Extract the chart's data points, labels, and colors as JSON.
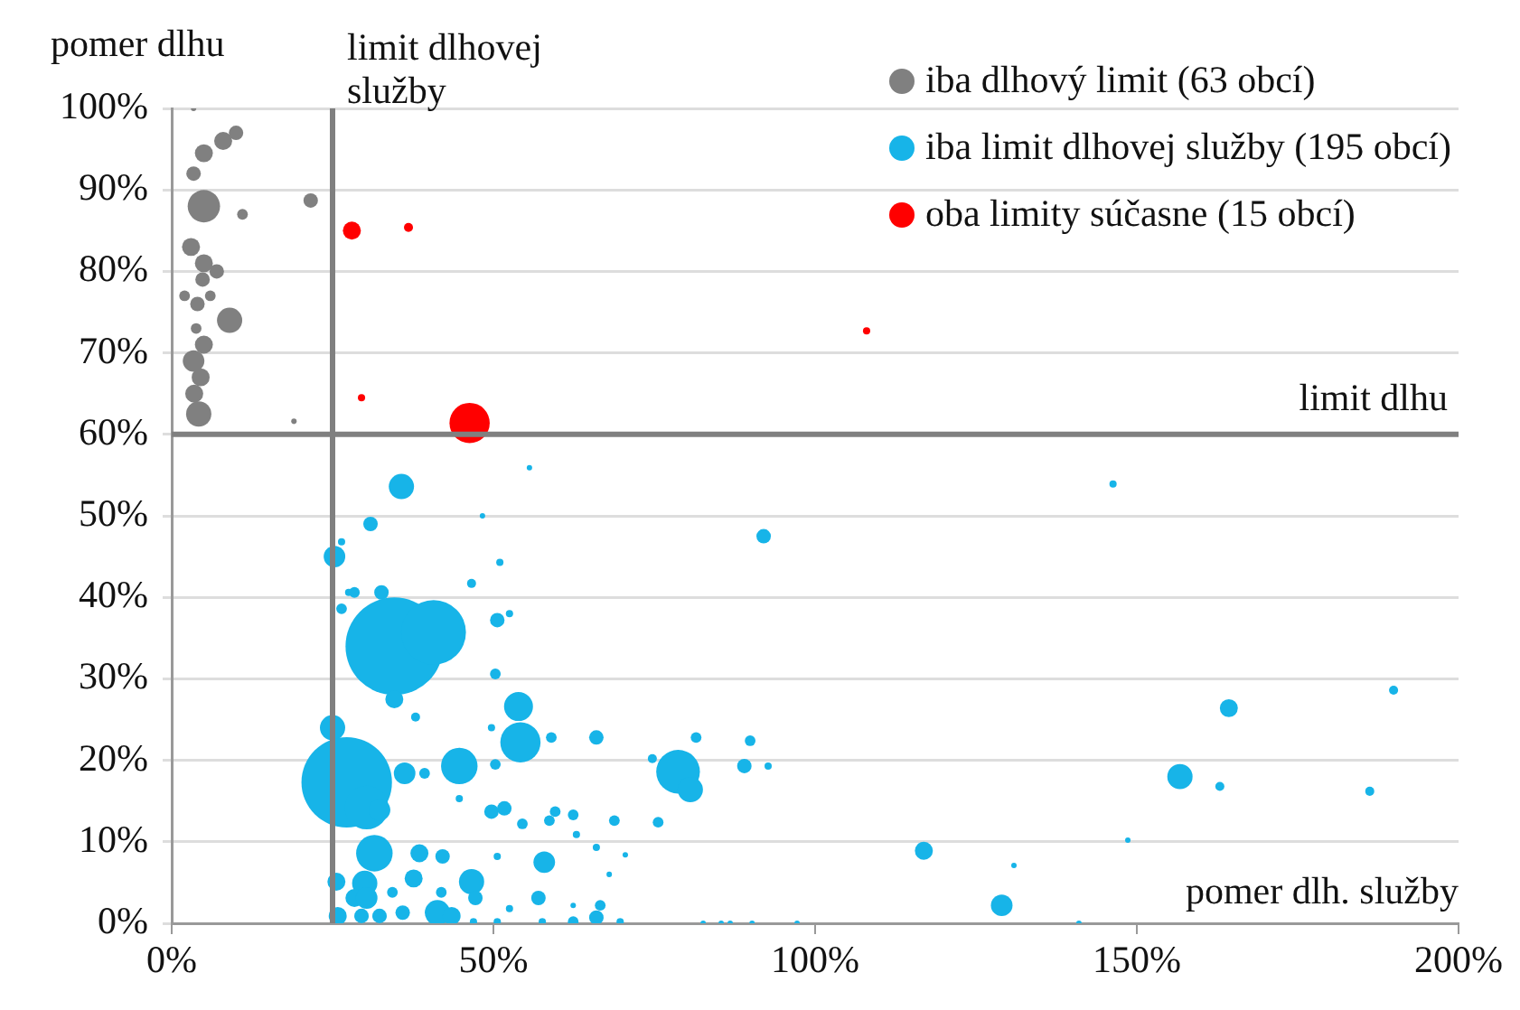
{
  "chart_data": {
    "type": "bubble",
    "xlabel": "pomer dlh. služby",
    "ylabel": "pomer dlhu",
    "xlim": [
      0,
      200
    ],
    "xticks": [
      {
        "value": 0,
        "label": "0%"
      },
      {
        "value": 50,
        "label": "50%"
      },
      {
        "value": 100,
        "label": "100%"
      },
      {
        "value": 150,
        "label": "150%"
      },
      {
        "value": 200,
        "label": "200%"
      }
    ],
    "ylim": [
      0,
      100
    ],
    "yticks": [
      {
        "value": 0,
        "label": "0%"
      },
      {
        "value": 10,
        "label": "10%"
      },
      {
        "value": 20,
        "label": "20%"
      },
      {
        "value": 30,
        "label": "30%"
      },
      {
        "value": 40,
        "label": "40%"
      },
      {
        "value": 50,
        "label": "50%"
      },
      {
        "value": 60,
        "label": "60%"
      },
      {
        "value": 70,
        "label": "70%"
      },
      {
        "value": 80,
        "label": "80%"
      },
      {
        "value": 90,
        "label": "90%"
      },
      {
        "value": 100,
        "label": "100%"
      }
    ],
    "grid": "y",
    "legend": "top right",
    "marker": "circle",
    "ref_lines": [
      {
        "axis": "x",
        "value": 25,
        "label": "limit dlhovej služby",
        "color": "#808080"
      },
      {
        "axis": "y",
        "value": 60,
        "label": "limit dlhu",
        "color": "#808080"
      }
    ],
    "series": [
      {
        "name": "iba dlhový limit (63 obcí)",
        "color": "#808080",
        "x": [
          4.2,
          3.4,
          5,
          9,
          4,
          2,
          6,
          5,
          7,
          3,
          5,
          11,
          21.6,
          5,
          8,
          10,
          3.4,
          3.4,
          19,
          3.5,
          4.5,
          3.8,
          4.8
        ],
        "values": [
          62.5,
          69,
          71,
          74,
          76,
          77,
          77,
          81,
          80,
          83,
          88,
          87,
          88.7,
          94.5,
          96,
          97,
          92,
          100,
          61.6,
          65,
          67,
          73,
          79
        ],
        "sizes": [
          0.067,
          0.049,
          0.034,
          0.067,
          0.022,
          0.012,
          0.012,
          0.034,
          0.022,
          0.034,
          0.11,
          0.012,
          0.022,
          0.034,
          0.034,
          0.022,
          0.022,
          0.0031,
          0.0031,
          0.034,
          0.034,
          0.012,
          0.022
        ]
      },
      {
        "name": "iba limit dlhovej služby (195 obcí)",
        "color": "#17b4e8",
        "x": [
          35.7,
          30.9,
          25.3,
          26.4,
          28.4,
          27.5,
          32.6,
          26.4,
          34.6,
          40.7,
          34.6,
          50.6,
          52.5,
          51,
          46.6,
          48.3,
          55.6,
          50.3,
          53.9,
          54.2,
          49.7,
          59,
          25,
          27.2,
          30.3,
          32.3,
          36.2,
          39.3,
          44.7,
          37.9,
          50.3,
          44.7,
          49.7,
          51.7,
          54.5,
          58.7,
          31.5,
          38.5,
          42.1,
          50.6,
          57.9,
          25.6,
          30,
          28.4,
          30.3,
          37.6,
          34.3,
          46.6,
          47.2,
          41.9,
          57,
          52.5,
          25.8,
          29.5,
          32.3,
          35.9,
          41.3,
          43.5,
          46.9,
          50.6,
          57.6,
          92,
          66,
          78.7,
          80.6,
          74.7,
          81.5,
          89.9,
          89,
          92.7,
          59.6,
          62.4,
          68.8,
          75.6,
          62.9,
          66,
          70.5,
          68,
          66.6,
          62.4,
          62.4,
          66,
          69.7,
          82.6,
          85.4,
          86.8,
          90.2,
          97.2,
          116.9,
          129,
          146.3,
          164.3,
          189.9,
          156.7,
          162.9,
          186.2,
          148.6,
          130.9,
          141
        ],
        "values": [
          53.6,
          49,
          45,
          46.8,
          40.6,
          40.6,
          40.6,
          38.6,
          34,
          35.7,
          27.5,
          37.2,
          38,
          44.3,
          41.7,
          50,
          55.9,
          30.6,
          26.6,
          22.2,
          24,
          22.8,
          24,
          17.3,
          14.2,
          13.9,
          18.4,
          18.4,
          19.3,
          25.3,
          19.5,
          15.3,
          13.7,
          14.1,
          12.2,
          12.6,
          8.6,
          8.6,
          8.2,
          8.2,
          7.5,
          5.1,
          4.9,
          3.1,
          3.1,
          5.5,
          3.8,
          5.1,
          3.1,
          3.8,
          3.1,
          1.8,
          0.9,
          0.9,
          0.9,
          1.3,
          1.3,
          0.9,
          0.2,
          0.2,
          0.2,
          47.5,
          22.8,
          18.6,
          16.4,
          20.2,
          22.8,
          22.4,
          19.3,
          19.3,
          13.7,
          13.3,
          12.6,
          12.4,
          10.9,
          9.3,
          8.4,
          6,
          2.2,
          2.2,
          0.2,
          0.7,
          0.2,
          0,
          0,
          0,
          0,
          0,
          8.9,
          2.2,
          53.9,
          26.4,
          28.6,
          18,
          16.8,
          16.2,
          10.2,
          7.1,
          0
        ],
        "sizes": [
          0.067,
          0.022,
          0.049,
          0.0055,
          0.012,
          0.0055,
          0.022,
          0.012,
          1,
          0.44,
          0.034,
          0.022,
          0.0055,
          0.0055,
          0.0086,
          0.0031,
          0.0031,
          0.012,
          0.088,
          0.17,
          0.0055,
          0.012,
          0.067,
          0.86,
          0.2,
          0.049,
          0.049,
          0.012,
          0.14,
          0.0086,
          0.012,
          0.0055,
          0.022,
          0.022,
          0.012,
          0.012,
          0.14,
          0.034,
          0.022,
          0.0055,
          0.049,
          0.034,
          0.067,
          0.034,
          0.049,
          0.034,
          0.012,
          0.067,
          0.022,
          0.012,
          0.022,
          0.0055,
          0.034,
          0.022,
          0.022,
          0.022,
          0.067,
          0.034,
          0.0055,
          0.0055,
          0.0055,
          0.022,
          0.022,
          0.2,
          0.067,
          0.0086,
          0.012,
          0.012,
          0.022,
          0.0055,
          0.012,
          0.012,
          0.012,
          0.012,
          0.0055,
          0.0055,
          0.0031,
          0.0031,
          0.012,
          0.0031,
          0.012,
          0.022,
          0.0055,
          0.0031,
          0.0031,
          0.0031,
          0.0031,
          0.0031,
          0.034,
          0.049,
          0.0055,
          0.034,
          0.0086,
          0.067,
          0.0086,
          0.0086,
          0.0031,
          0.0031,
          0.0031
        ]
      },
      {
        "name": "oba limity súčasne (15 obcí)",
        "color": "#ff0000",
        "x": [
          28,
          36.8,
          46.3,
          29.5,
          108
        ],
        "values": [
          85,
          85.4,
          61.4,
          64.5,
          72.7
        ],
        "sizes": [
          0.034,
          0.0086,
          0.17,
          0.0055,
          0.0055
        ]
      }
    ]
  }
}
